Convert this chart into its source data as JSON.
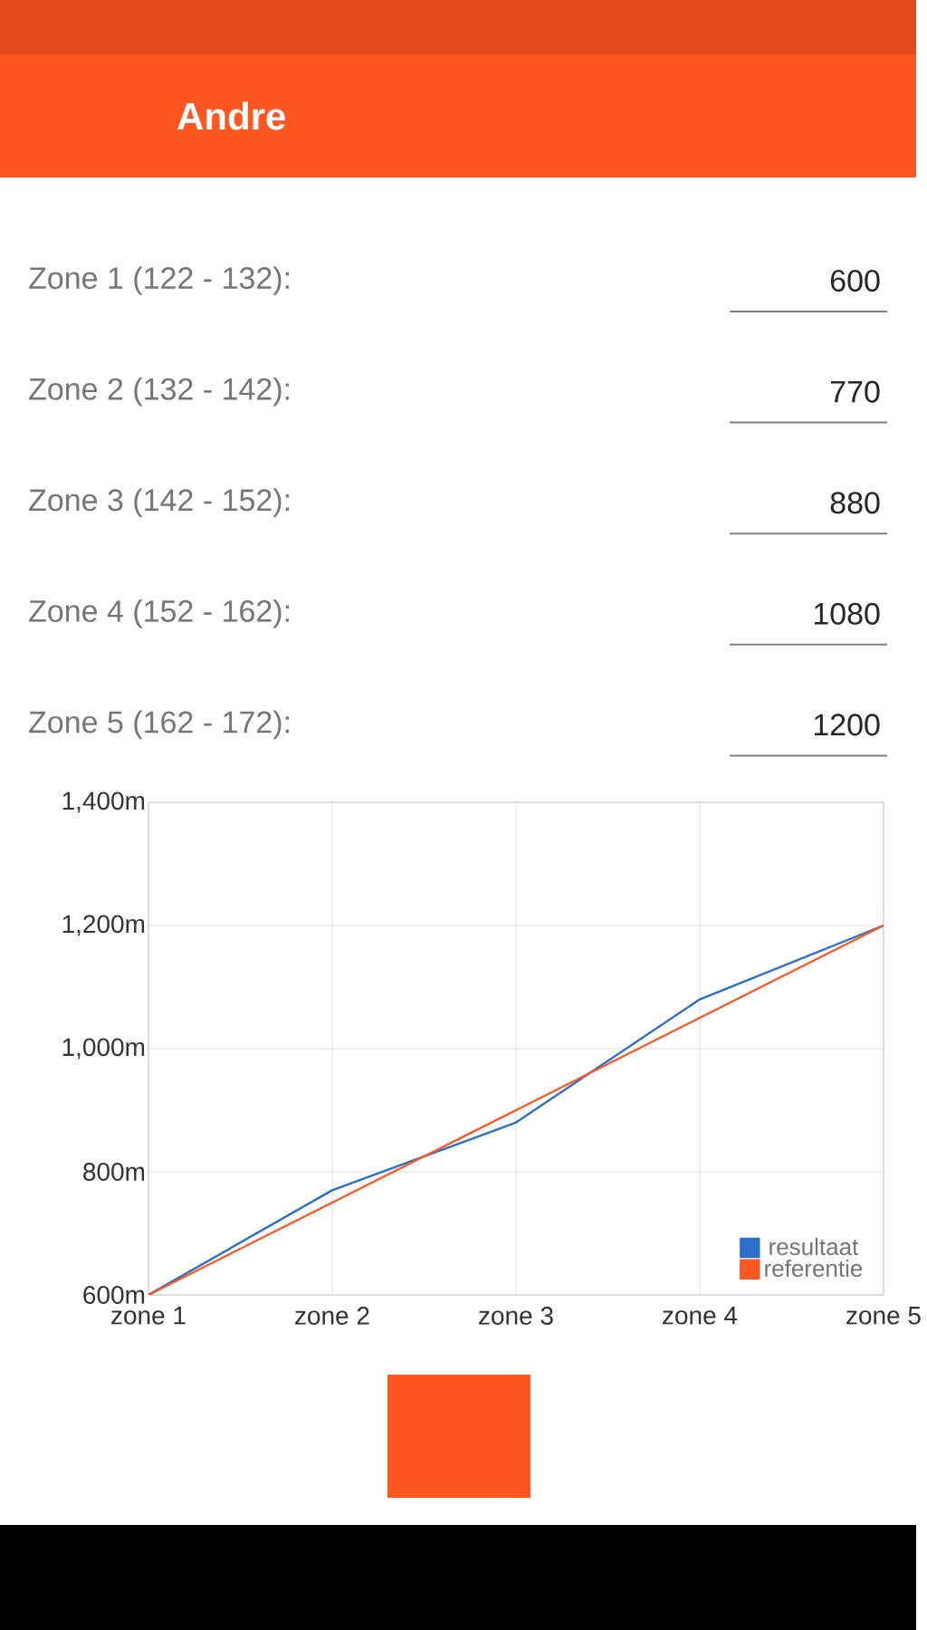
{
  "chart_data": {
    "type": "line",
    "title": "Andre",
    "annotations": [
      "Zone 1 (122 - 132):",
      "600",
      "Zone 2 (132 - 142):",
      "770",
      "Zone 3 (142 - 152):",
      "880",
      "Zone 4 (152 - 162):",
      "1080",
      "Zone 5 (162 - 172):",
      "1200"
    ],
    "categories": [
      "zone 1",
      "zone 2",
      "zone 3",
      "zone 4",
      "zone 5"
    ],
    "series": [
      {
        "name": "resultaat",
        "color": "#2a6fc9",
        "values": [
          600,
          770,
          880,
          1080,
          1200
        ]
      },
      {
        "name": "referentie",
        "color": "#ff5722",
        "values": [
          600,
          750,
          900,
          1050,
          1200
        ]
      }
    ],
    "ylim": [
      600,
      1400
    ],
    "yticks": [
      {
        "value": 600,
        "label": "600m"
      },
      {
        "value": 800,
        "label": "800m"
      },
      {
        "value": 1000,
        "label": "1,000m"
      },
      {
        "value": 1200,
        "label": "1,200m"
      },
      {
        "value": 1400,
        "label": "1,400m"
      }
    ],
    "grid": true,
    "legend": "bottom right",
    "marker": "none",
    "line_style": "solid"
  }
}
